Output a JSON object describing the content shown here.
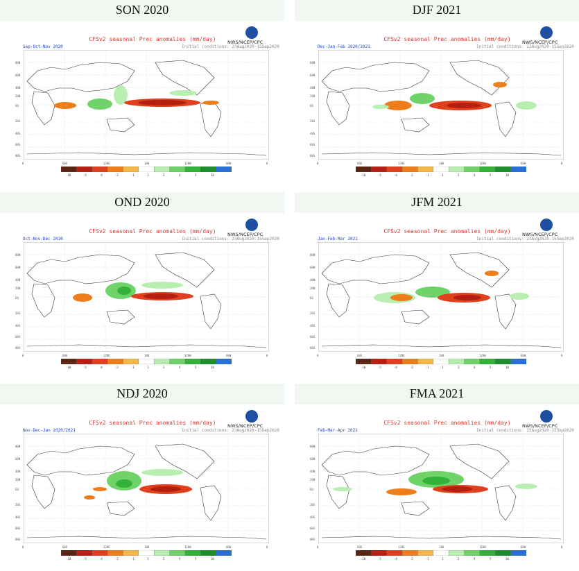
{
  "plot_title": "CFSv2 seasonal Prec anomalies (mm/day)",
  "agency_label": "NWS/NCEP/CPC",
  "ic_label": "Initial conditions: 23Aug2020-15Sep2020",
  "x_ticks": [
    "0",
    "60E",
    "120E",
    "180",
    "120W",
    "60W",
    "0"
  ],
  "y_ticks": [
    "80N",
    "60N",
    "40N",
    "20N",
    "EQ",
    "20S",
    "40S",
    "60S",
    "80S"
  ],
  "colorbar_ticks": [
    "-10",
    "-5",
    "-4",
    "-2",
    "-1",
    "1",
    "2",
    "4",
    "5",
    "10"
  ],
  "colorbar_colors": [
    "#5a2412",
    "#b51f12",
    "#e0401d",
    "#ee7e1c",
    "#f4b84a",
    "#ffffff",
    "#b8eeb0",
    "#70d36a",
    "#33b23a",
    "#1c8e2c",
    "#2a6fd6"
  ],
  "panels": [
    {
      "title": "SON 2020",
      "season": "Sep-Oct-Nov 2020"
    },
    {
      "title": "DJF 2021",
      "season": "Dec-Jan-Feb 2020/2021"
    },
    {
      "title": "OND 2020",
      "season": "Oct-Nov-Dec 2020"
    },
    {
      "title": "JFM 2021",
      "season": "Jan-Feb-Mar 2021"
    },
    {
      "title": "NDJ 2020",
      "season": "Nov-Dec-Jan 2020/2021"
    },
    {
      "title": "FMA 2021",
      "season": "Feb-Mar-Apr 2021"
    }
  ]
}
